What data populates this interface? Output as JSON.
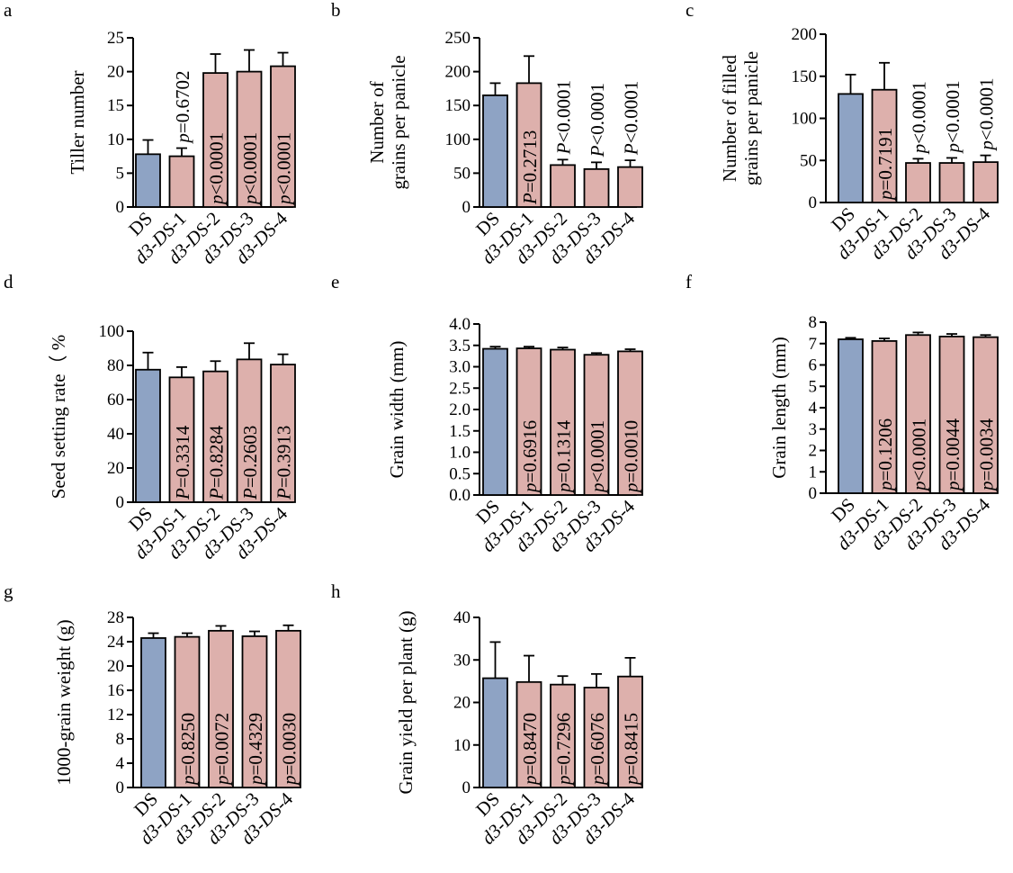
{
  "colors": {
    "control_bar": "#8ea3c4",
    "mutant_bar": "#ddb0ac",
    "stroke": "#000000"
  },
  "chart_data": [
    {
      "panel": "a",
      "type": "bar",
      "categories": [
        "DS",
        "d3-DS-1",
        "d3-DS-2",
        "d3-DS-3",
        "d3-DS-4"
      ],
      "values": [
        7.8,
        7.5,
        19.8,
        20.0,
        20.8
      ],
      "errors": [
        2.1,
        1.2,
        2.8,
        3.2,
        2.0
      ],
      "ylabel": [
        "Tiller number"
      ],
      "ylim": [
        0,
        25
      ],
      "yticks": [
        0,
        5,
        10,
        15,
        20,
        25
      ],
      "annotations": [
        "",
        "p=0.6702",
        "p<0.0001",
        "p<0.0001",
        "p<0.0001"
      ],
      "annotation_above": [
        false,
        true,
        false,
        false,
        false
      ]
    },
    {
      "panel": "b",
      "type": "bar",
      "categories": [
        "DS",
        "d3-DS-1",
        "d3-DS-2",
        "d3-DS-3",
        "d3-DS-4"
      ],
      "values": [
        165,
        183,
        62,
        56,
        59
      ],
      "errors": [
        18,
        40,
        8,
        10,
        10
      ],
      "ylabel": [
        "Number of",
        "grains per panicle"
      ],
      "ylim": [
        0,
        250
      ],
      "yticks": [
        0,
        50,
        100,
        150,
        200,
        250
      ],
      "annotations": [
        "",
        "P=0.2713",
        "P<0.0001",
        "P<0.0001",
        "P<0.0001"
      ],
      "annotation_above": [
        false,
        false,
        true,
        true,
        true
      ]
    },
    {
      "panel": "c",
      "type": "bar",
      "categories": [
        "DS",
        "d3-DS-1",
        "d3-DS-2",
        "d3-DS-3",
        "d3-DS-4"
      ],
      "values": [
        129,
        134,
        47,
        47,
        48
      ],
      "errors": [
        23,
        32,
        5,
        6,
        8
      ],
      "ylabel": [
        "Number of filled",
        "grains per panicle"
      ],
      "ylim": [
        0,
        200
      ],
      "yticks": [
        0,
        50,
        100,
        150,
        200
      ],
      "annotations": [
        "",
        "p=0.7191",
        "p<0.0001",
        "p<0.0001",
        "p<0.0001"
      ],
      "annotation_above": [
        false,
        false,
        true,
        true,
        true
      ]
    },
    {
      "panel": "d",
      "type": "bar",
      "categories": [
        "DS",
        "d3-DS-1",
        "d3-DS-2",
        "d3-DS-3",
        "d3-DS-4"
      ],
      "values": [
        77.5,
        73,
        76.5,
        83.5,
        80.5
      ],
      "errors": [
        10,
        6,
        6,
        9.5,
        6
      ],
      "ylabel": [
        "Seed setting rate（ %"
      ],
      "ylim": [
        0,
        100
      ],
      "yticks": [
        0,
        20,
        40,
        60,
        80,
        100
      ],
      "annotations": [
        "",
        "P=0.3314",
        "P=0.8284",
        "P=0.2603",
        "P=0.3913"
      ],
      "annotation_above": [
        false,
        false,
        false,
        false,
        false
      ]
    },
    {
      "panel": "e",
      "type": "bar",
      "categories": [
        "DS",
        "d3-DS-1",
        "d3-DS-2",
        "d3-DS-3",
        "d3-DS-4"
      ],
      "values": [
        3.42,
        3.43,
        3.4,
        3.28,
        3.36
      ],
      "errors": [
        0.05,
        0.04,
        0.05,
        0.04,
        0.05
      ],
      "ylabel": [
        "Grain width (mm)"
      ],
      "ylim": [
        0,
        4.0
      ],
      "yticks": [
        0,
        0.5,
        1.0,
        1.5,
        2.0,
        2.5,
        3.0,
        3.5,
        4.0
      ],
      "ytick_decimals": 1,
      "annotations": [
        "",
        "p=0.6916",
        "p=0.1314",
        "p<0.0001",
        "p=0.0010"
      ],
      "annotation_above": [
        false,
        false,
        false,
        false,
        false
      ]
    },
    {
      "panel": "f",
      "type": "bar",
      "categories": [
        "DS",
        "d3-DS-1",
        "d3-DS-2",
        "d3-DS-3",
        "d3-DS-4"
      ],
      "values": [
        7.2,
        7.12,
        7.4,
        7.33,
        7.3
      ],
      "errors": [
        0.07,
        0.12,
        0.12,
        0.12,
        0.1
      ],
      "ylabel": [
        "Grain length (mm)"
      ],
      "ylim": [
        0,
        8
      ],
      "yticks": [
        0,
        1,
        2,
        3,
        4,
        5,
        6,
        7,
        8
      ],
      "annotations": [
        "",
        "p=0.1206",
        "p<0.0001",
        "p=0.0044",
        "p=0.0034"
      ],
      "annotation_above": [
        false,
        false,
        false,
        false,
        false
      ]
    },
    {
      "panel": "g",
      "type": "bar",
      "categories": [
        "DS",
        "d3-DS-1",
        "d3-DS-2",
        "d3-DS-3",
        "d3-DS-4"
      ],
      "values": [
        24.6,
        24.8,
        25.8,
        24.9,
        25.8
      ],
      "errors": [
        0.8,
        0.6,
        0.8,
        0.8,
        0.9
      ],
      "ylabel": [
        "1000-grain weight (g)"
      ],
      "ylim": [
        0,
        28
      ],
      "yticks": [
        0,
        4,
        8,
        12,
        16,
        20,
        24,
        28
      ],
      "annotations": [
        "",
        "p=0.8250",
        "p=0.0072",
        "p=0.4329",
        "p=0.0030"
      ],
      "annotation_above": [
        false,
        false,
        false,
        false,
        false
      ]
    },
    {
      "panel": "h",
      "type": "bar",
      "categories": [
        "DS",
        "d3-DS-1",
        "d3-DS-2",
        "d3-DS-3",
        "d3-DS-4"
      ],
      "values": [
        25.7,
        24.8,
        24.2,
        23.5,
        26.1
      ],
      "errors": [
        8.5,
        6.2,
        2.0,
        3.2,
        4.4
      ],
      "ylabel": [
        "Grain yield per plant (g)"
      ],
      "ylim": [
        0,
        40
      ],
      "yticks": [
        0,
        10,
        20,
        30,
        40
      ],
      "annotations": [
        "",
        "p=0.8470",
        "p=0.7296",
        "p=0.6076",
        "p=0.8415"
      ],
      "annotation_above": [
        false,
        false,
        false,
        false,
        false
      ]
    }
  ]
}
